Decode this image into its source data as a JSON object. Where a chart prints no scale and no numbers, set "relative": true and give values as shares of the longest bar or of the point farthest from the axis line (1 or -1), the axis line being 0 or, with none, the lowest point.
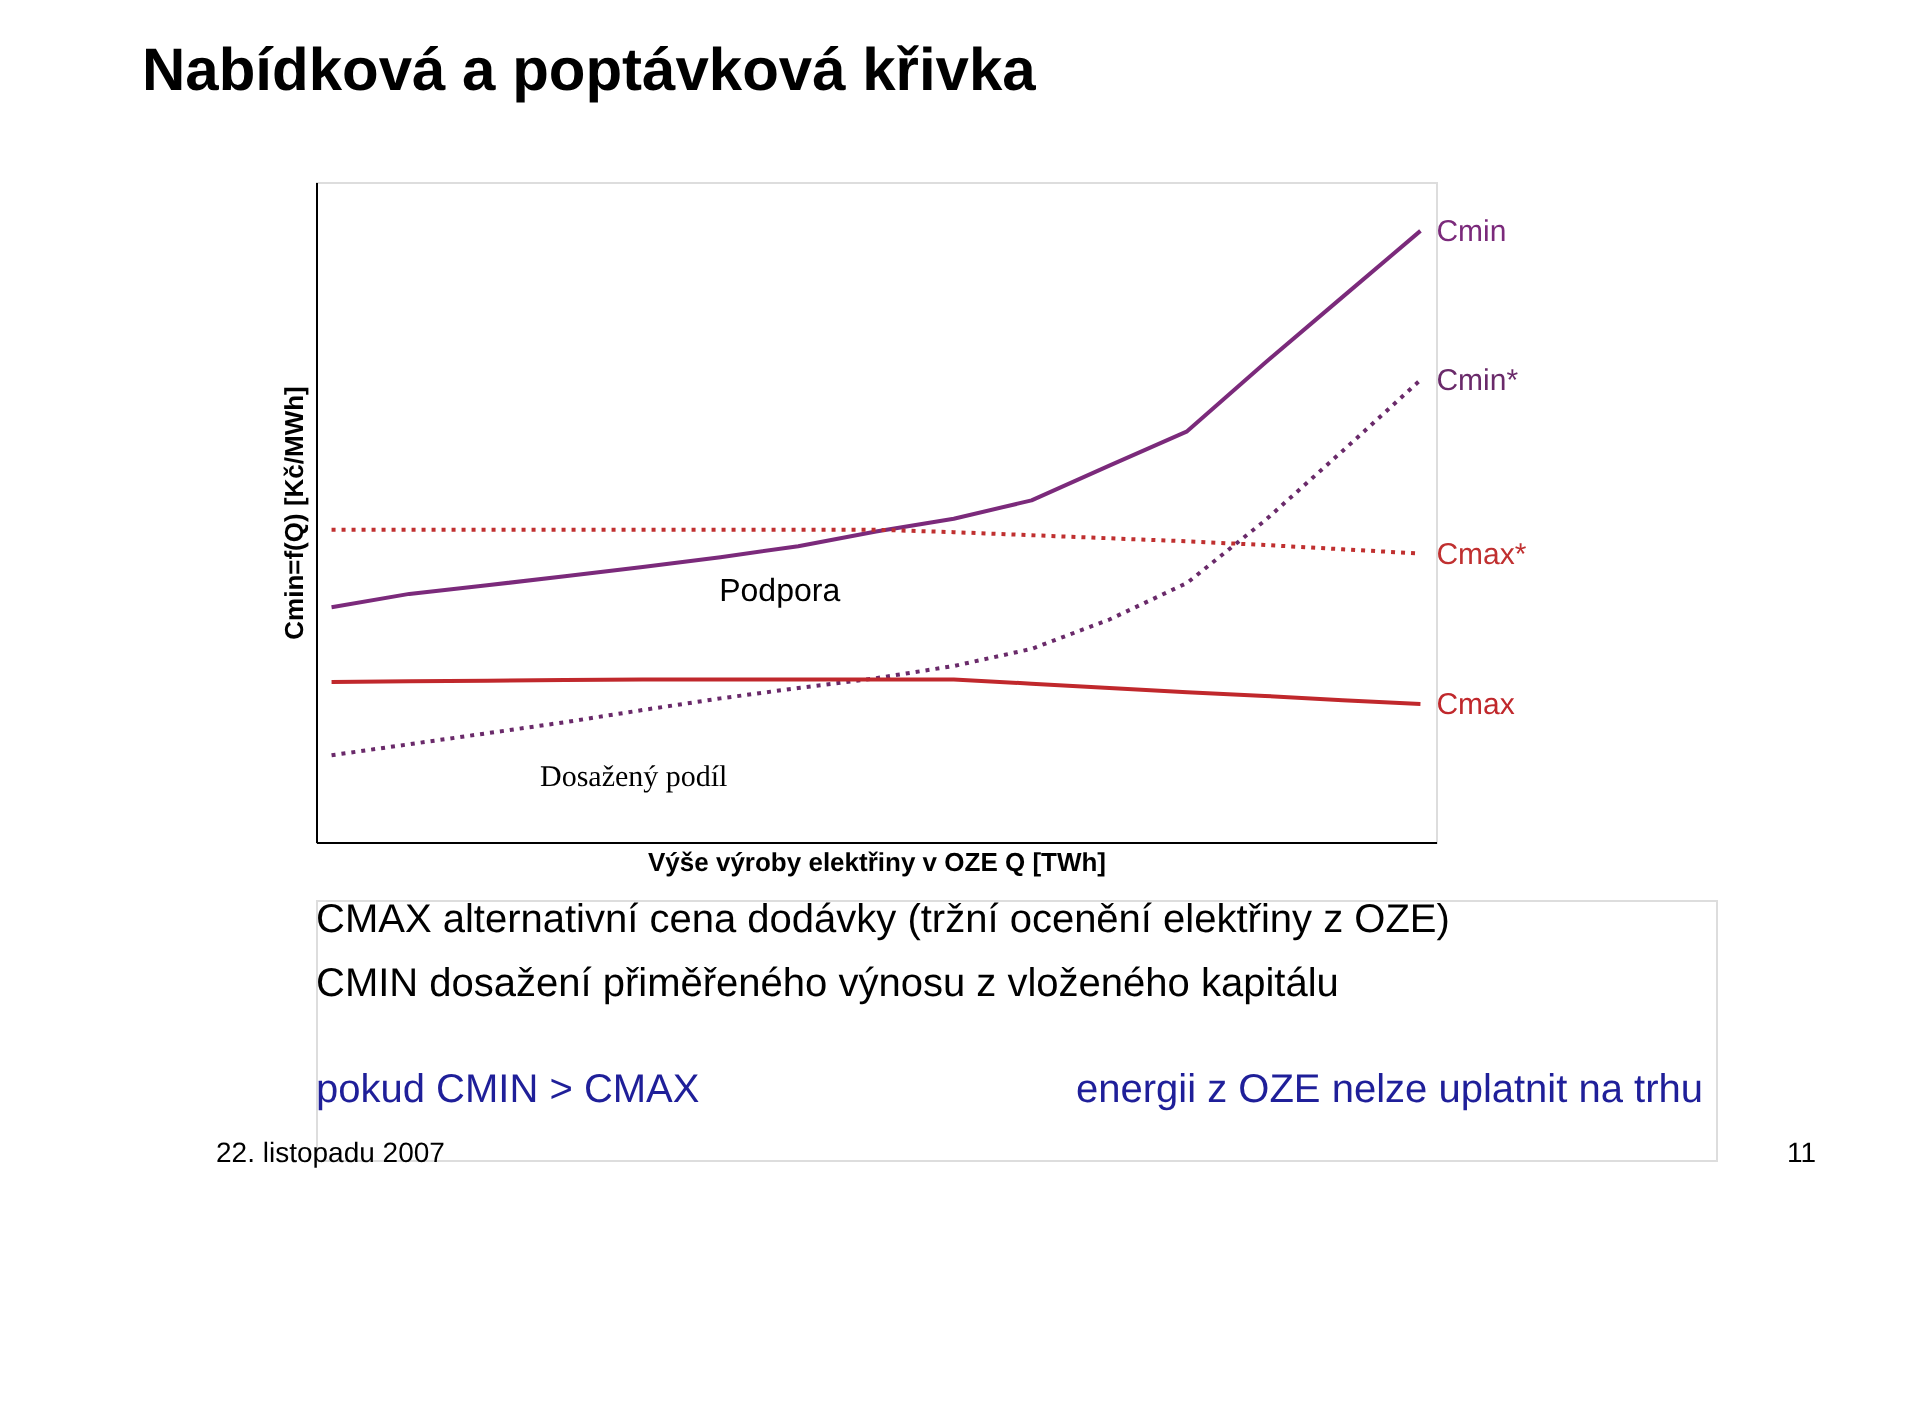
{
  "chart_data": {
    "type": "line",
    "title": "Nabídková a poptávková křivka",
    "xlabel": "Výše výroby elektřiny v OZE Q  [TWh]",
    "ylabel": "Cmin=f(Q)  [Kč/MWh]",
    "relative": true,
    "grid": false,
    "marker": "none",
    "categories": [
      null,
      null,
      null,
      null,
      null,
      null,
      null,
      null,
      null,
      null,
      null,
      null,
      null,
      null,
      null
    ],
    "series": [
      {
        "name": "Cmin",
        "color": "#7b2a7b",
        "line_style": "solid",
        "values": [
          0.384,
          0.406,
          0.42,
          0.435,
          0.45,
          0.466,
          0.484,
          0.508,
          0.529,
          0.559,
          0.616,
          0.672,
          0.784,
          0.892,
          1.0
        ]
      },
      {
        "name": "Cmin*",
        "color": "#6a2a6a",
        "line_style": "dotted",
        "values": [
          0.142,
          0.16,
          0.178,
          0.196,
          0.216,
          0.235,
          0.252,
          0.268,
          0.288,
          0.316,
          0.364,
          0.424,
          0.526,
          0.64,
          0.756
        ]
      },
      {
        "name": "Cmax*",
        "color": "#c03030",
        "line_style": "dotted",
        "values": [
          0.511,
          0.511,
          0.511,
          0.511,
          0.511,
          0.511,
          0.511,
          0.511,
          0.507,
          0.502,
          0.497,
          0.492,
          0.486,
          0.479,
          0.472
        ]
      },
      {
        "name": "Cmax",
        "color": "#c0282c",
        "line_style": "solid",
        "values": [
          0.262,
          0.263,
          0.264,
          0.265,
          0.266,
          0.266,
          0.266,
          0.266,
          0.266,
          0.259,
          0.252,
          0.245,
          0.239,
          0.232,
          0.226
        ]
      }
    ],
    "annotations": [
      "Podpora",
      "Dosažený podíl",
      "CMAX   alternativní cena dodávky (tržní ocenění elektřiny z OZE)",
      "CMIN   dosažení přiměřeného výnosu z vloženého kapitálu",
      "pokud CMIN > CMAX",
      "energii z OZE nelze uplatnit na trhu",
      "22. listopadu 2007",
      "11"
    ]
  }
}
